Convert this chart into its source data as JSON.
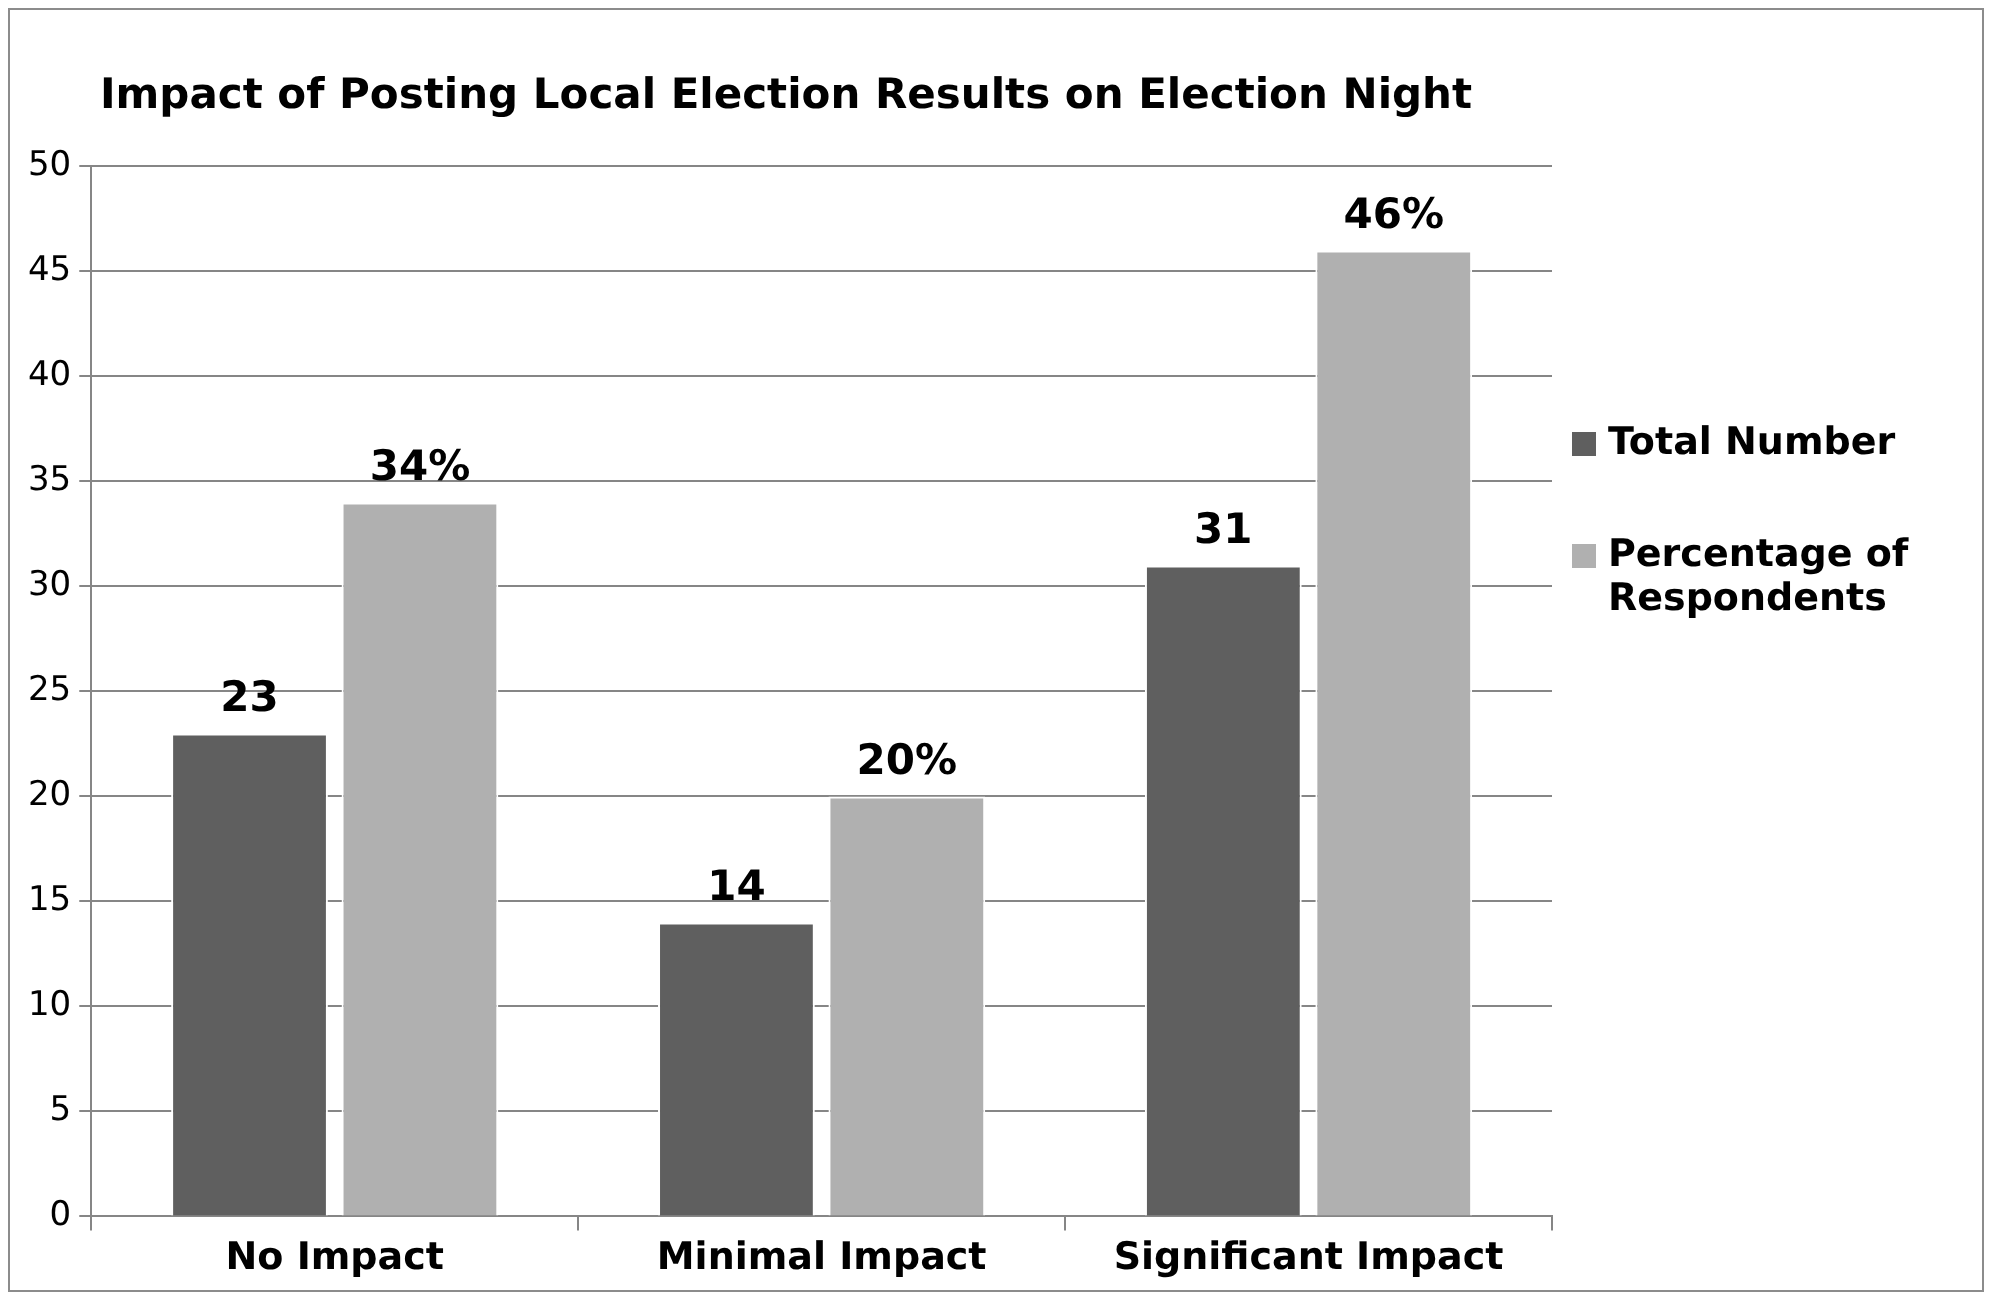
{
  "chart_data": {
    "type": "bar",
    "title": "Impact of Posting Local Election Results on Election Night",
    "categories": [
      "No Impact",
      "Minimal Impact",
      "Significant Impact"
    ],
    "series": [
      {
        "name": "Total Number",
        "color": "#5f5f5f",
        "values": [
          23,
          14,
          31
        ],
        "value_labels": [
          "23",
          "14",
          "31"
        ]
      },
      {
        "name": "Percentage of Respondents",
        "color": "#b0b0b0",
        "values": [
          34,
          20,
          46
        ],
        "value_labels": [
          "34%",
          "20%",
          "46%"
        ]
      }
    ],
    "ylim": [
      0,
      50
    ],
    "yticks": [
      0,
      5,
      10,
      15,
      20,
      25,
      30,
      35,
      40,
      45,
      50
    ],
    "grid": "y",
    "legend": "right"
  }
}
